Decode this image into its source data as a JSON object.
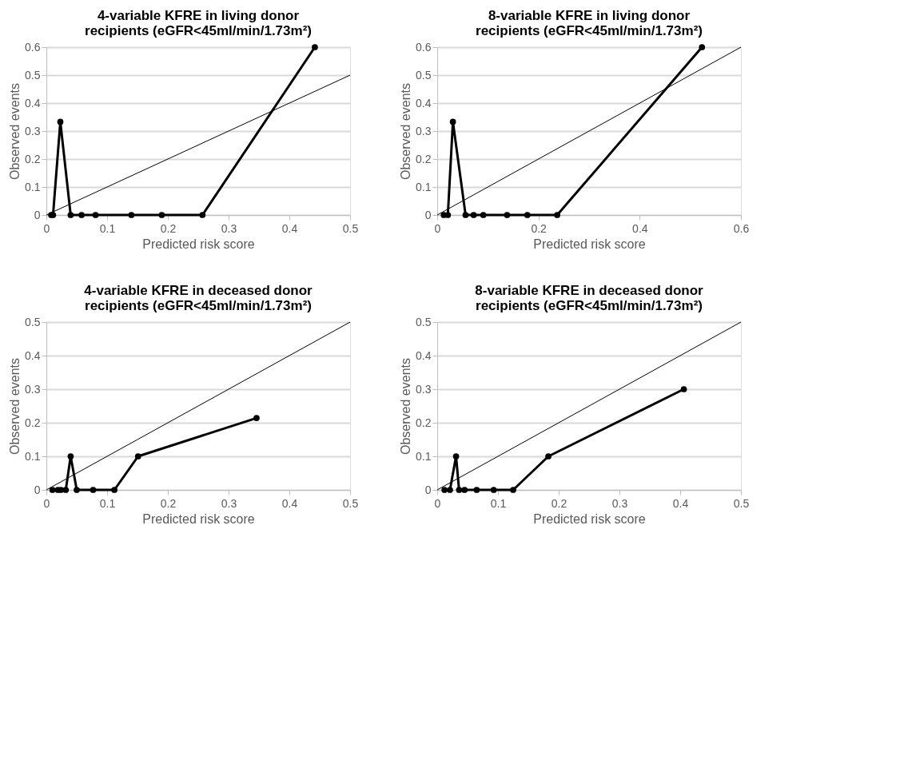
{
  "chart_data": [
    {
      "type": "line",
      "title": "4-variable KFRE in living donor recipients (eGFR<45ml/min/1.73m²)",
      "xlabel": "Predicted risk score",
      "ylabel": "Observed events",
      "xlim": [
        0,
        0.5
      ],
      "xticks": [
        0,
        0.1,
        0.2,
        0.3,
        0.4,
        0.5
      ],
      "ylim": [
        0,
        0.6
      ],
      "yticks": [
        0,
        0.1,
        0.2,
        0.3,
        0.4,
        0.5,
        0.6
      ],
      "grid": "y",
      "series": [
        {
          "color": "#000000",
          "marker": "circle",
          "x": [
            0.008,
            0.011,
            0.023,
            0.04,
            0.058,
            0.081,
            0.14,
            0.19,
            0.257,
            0.442
          ],
          "values": [
            0,
            0,
            0.333,
            0,
            0,
            0,
            0,
            0,
            0,
            0.6
          ]
        },
        {
          "color": "#000000",
          "marker": "none",
          "x": [
            0,
            0.5
          ],
          "values": [
            0,
            0.5
          ]
        }
      ]
    },
    {
      "type": "line",
      "title": "8-variable KFRE in living donor recipients (eGFR<45ml/min/1.73m²)",
      "xlabel": "Predicted risk score",
      "ylabel": "Observed events",
      "xlim": [
        0,
        0.6
      ],
      "xticks": [
        0,
        0.2,
        0.4,
        0.6
      ],
      "ylim": [
        0,
        0.6
      ],
      "yticks": [
        0,
        0.1,
        0.2,
        0.3,
        0.4,
        0.5,
        0.6
      ],
      "grid": "y",
      "series": [
        {
          "color": "#000000",
          "marker": "circle",
          "x": [
            0.013,
            0.021,
            0.031,
            0.056,
            0.072,
            0.091,
            0.138,
            0.178,
            0.237,
            0.523
          ],
          "values": [
            0,
            0,
            0.333,
            0,
            0,
            0,
            0,
            0,
            0,
            0.6
          ]
        },
        {
          "color": "#000000",
          "marker": "none",
          "x": [
            0,
            0.6
          ],
          "values": [
            0,
            0.6
          ]
        }
      ]
    },
    {
      "type": "line",
      "title": "4-variable KFRE in deceased donor recipients (eGFR<45ml/min/1.73m²)",
      "xlabel": "Predicted risk score",
      "ylabel": "Observed events",
      "xlim": [
        0,
        0.5
      ],
      "xticks": [
        0,
        0.1,
        0.2,
        0.3,
        0.4,
        0.5
      ],
      "ylim": [
        0,
        0.5
      ],
      "yticks": [
        0,
        0.1,
        0.2,
        0.3,
        0.4,
        0.5
      ],
      "grid": "y",
      "series": [
        {
          "color": "#000000",
          "marker": "circle",
          "x": [
            0.01,
            0.019,
            0.024,
            0.032,
            0.04,
            0.05,
            0.077,
            0.112,
            0.151,
            0.346
          ],
          "values": [
            0,
            0,
            0,
            0,
            0.1,
            0,
            0,
            0,
            0.1,
            0.214
          ]
        },
        {
          "color": "#000000",
          "marker": "none",
          "x": [
            0,
            0.5
          ],
          "values": [
            0,
            0.5
          ]
        }
      ]
    },
    {
      "type": "line",
      "title": "8-variable KFRE in deceased donor recipients (eGFR<45ml/min/1.73m²)",
      "xlabel": "Predicted risk score",
      "ylabel": "Observed events",
      "xlim": [
        0,
        0.5
      ],
      "xticks": [
        0,
        0.1,
        0.2,
        0.3,
        0.4,
        0.5
      ],
      "ylim": [
        0,
        0.5
      ],
      "yticks": [
        0,
        0.1,
        0.2,
        0.3,
        0.4,
        0.5
      ],
      "grid": "y",
      "series": [
        {
          "color": "#000000",
          "marker": "circle",
          "x": [
            0.012,
            0.021,
            0.031,
            0.036,
            0.045,
            0.065,
            0.093,
            0.125,
            0.183,
            0.406
          ],
          "values": [
            0,
            0,
            0.1,
            0,
            0,
            0,
            0,
            0,
            0.1,
            0.3
          ]
        },
        {
          "color": "#000000",
          "marker": "none",
          "x": [
            0,
            0.5
          ],
          "values": [
            0,
            0.5
          ]
        }
      ]
    }
  ]
}
